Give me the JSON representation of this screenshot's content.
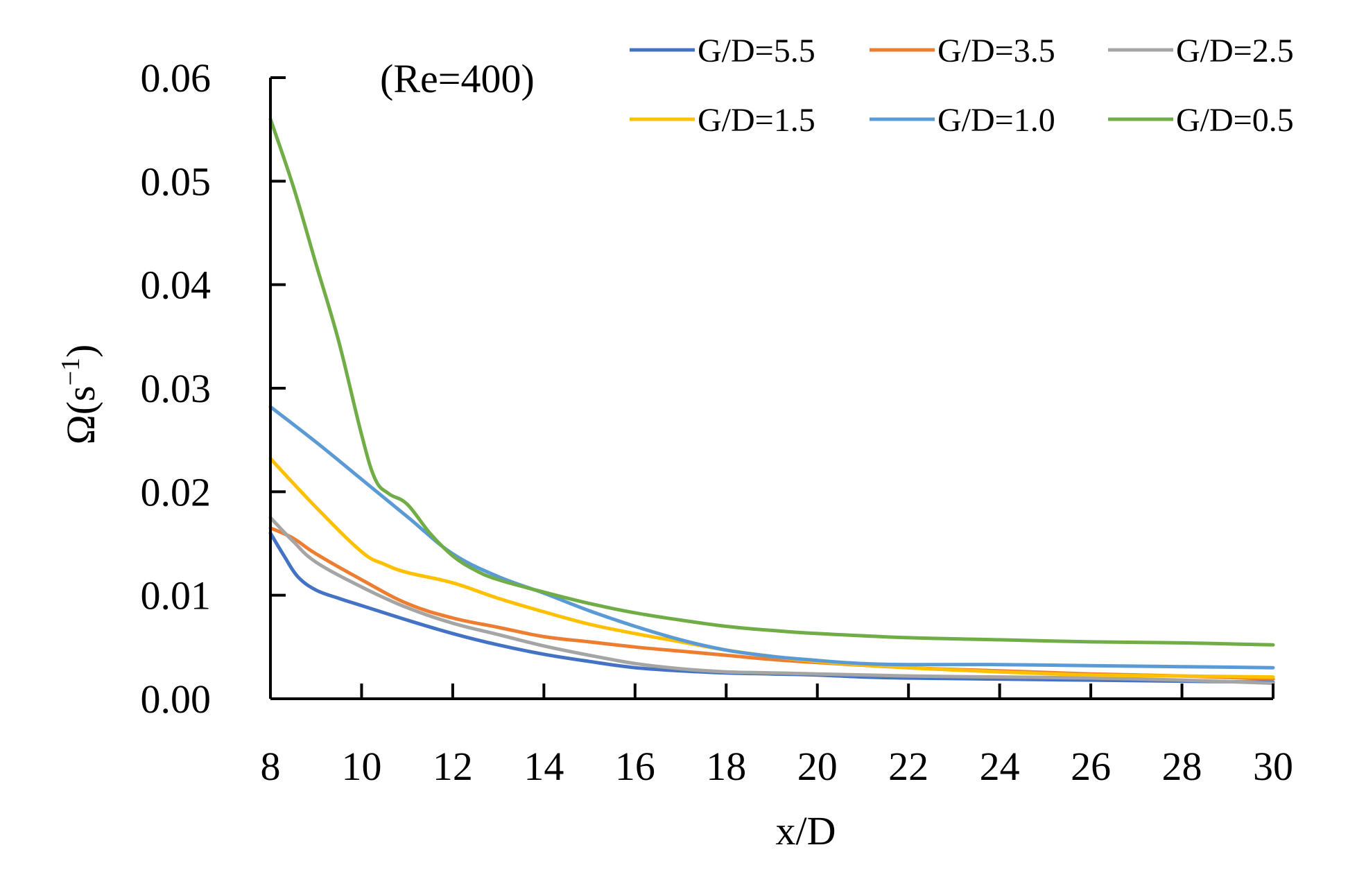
{
  "chart_data": {
    "type": "line",
    "annotation": "(Re=400)",
    "xlabel": "x/D",
    "ylabel_main": "Ω(s",
    "ylabel_sup": "−1",
    "ylabel_close": ")",
    "xlim": [
      8,
      30
    ],
    "ylim": [
      0,
      0.06
    ],
    "xticks": [
      8,
      10,
      12,
      14,
      16,
      18,
      20,
      22,
      24,
      26,
      28,
      30
    ],
    "yticks": [
      0,
      0.01,
      0.02,
      0.03,
      0.04,
      0.05,
      0.06
    ],
    "ytick_labels": [
      "0.00",
      "0.01",
      "0.02",
      "0.03",
      "0.04",
      "0.05",
      "0.06"
    ],
    "grid": false,
    "legend_position": "top-right",
    "series": [
      {
        "name": "G/D=5.5",
        "color": "#4472C4",
        "x": [
          8,
          8.3,
          8.6,
          9,
          9.5,
          10,
          11,
          12,
          13,
          14,
          15,
          16,
          17,
          18,
          19,
          20,
          21,
          22,
          24,
          26,
          28,
          30
        ],
        "y": [
          0.016,
          0.0138,
          0.0118,
          0.0105,
          0.0097,
          0.009,
          0.0076,
          0.0063,
          0.0052,
          0.0043,
          0.0036,
          0.003,
          0.0027,
          0.0025,
          0.0024,
          0.0023,
          0.0021,
          0.002,
          0.0019,
          0.0018,
          0.0017,
          0.0016
        ]
      },
      {
        "name": "G/D=3.5",
        "color": "#ED7D31",
        "x": [
          8,
          8.5,
          9,
          10,
          11,
          12,
          13,
          14,
          15,
          16,
          17,
          18,
          19,
          20,
          22,
          24,
          26,
          28,
          30
        ],
        "y": [
          0.0165,
          0.0155,
          0.014,
          0.0115,
          0.0092,
          0.0078,
          0.0069,
          0.006,
          0.0055,
          0.005,
          0.0046,
          0.0042,
          0.0038,
          0.0035,
          0.003,
          0.0027,
          0.0024,
          0.0022,
          0.0019
        ]
      },
      {
        "name": "G/D=2.5",
        "color": "#A5A5A5",
        "x": [
          8,
          8.5,
          9,
          10,
          11,
          12,
          13,
          14,
          15,
          16,
          17,
          18,
          19,
          20,
          22,
          24,
          26,
          28,
          30
        ],
        "y": [
          0.0175,
          0.0152,
          0.0132,
          0.0108,
          0.0088,
          0.0073,
          0.0062,
          0.0051,
          0.0042,
          0.0034,
          0.0029,
          0.0026,
          0.0025,
          0.0024,
          0.0022,
          0.0021,
          0.002,
          0.0018,
          0.0015
        ]
      },
      {
        "name": "G/D=1.5",
        "color": "#FFC000",
        "x": [
          8,
          9,
          10,
          10.5,
          11,
          12,
          13,
          14,
          15,
          16,
          17,
          18,
          19,
          20,
          22,
          24,
          26,
          28,
          30
        ],
        "y": [
          0.0232,
          0.0185,
          0.0142,
          0.013,
          0.0122,
          0.0112,
          0.0097,
          0.0084,
          0.0072,
          0.0063,
          0.0055,
          0.0047,
          0.0041,
          0.0036,
          0.003,
          0.0026,
          0.0023,
          0.0022,
          0.0021
        ]
      },
      {
        "name": "G/D=1.0",
        "color": "#5B9BD5",
        "x": [
          8,
          9,
          10,
          11,
          12,
          13,
          14,
          15,
          16,
          17,
          18,
          19,
          20,
          21,
          22,
          24,
          26,
          28,
          30
        ],
        "y": [
          0.0282,
          0.0248,
          0.0212,
          0.0176,
          0.014,
          0.0118,
          0.0102,
          0.0085,
          0.007,
          0.0057,
          0.0047,
          0.0041,
          0.0037,
          0.0034,
          0.0033,
          0.0033,
          0.0032,
          0.0031,
          0.003
        ]
      },
      {
        "name": "G/D=0.5",
        "color": "#70AD47",
        "x": [
          8,
          8.5,
          9,
          9.5,
          10,
          10.3,
          10.6,
          11,
          11.5,
          12,
          12.5,
          13,
          14,
          15,
          16,
          17,
          18,
          19,
          20,
          22,
          24,
          26,
          28,
          30
        ],
        "y": [
          0.056,
          0.0495,
          0.042,
          0.0345,
          0.0255,
          0.0212,
          0.0198,
          0.0188,
          0.016,
          0.0138,
          0.0124,
          0.0115,
          0.0103,
          0.0092,
          0.0083,
          0.0076,
          0.007,
          0.0066,
          0.0063,
          0.0059,
          0.0057,
          0.0055,
          0.0054,
          0.0052
        ]
      }
    ]
  }
}
